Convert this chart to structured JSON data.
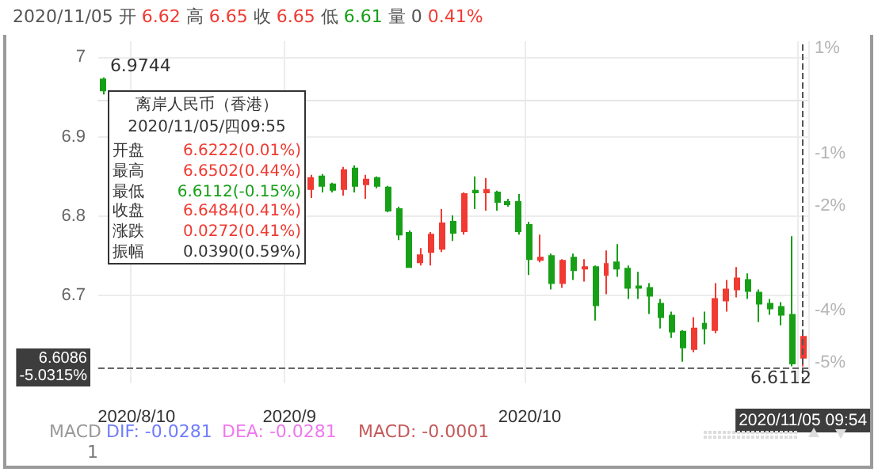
{
  "chart_data": {
    "type": "candlestick",
    "title": "2020/11/05 开 6.62 高 6.65 收 6.65 低 6.61 量 0 0.41%",
    "categories": [
      null,
      null,
      null,
      "2020/8/10",
      null,
      null,
      null,
      null,
      null,
      null,
      null,
      null,
      null,
      null,
      null,
      null,
      null,
      "2020/9",
      null,
      null,
      null,
      null,
      null,
      null,
      null,
      null,
      null,
      null,
      null,
      null,
      null,
      null,
      null,
      null,
      null,
      null,
      null,
      null,
      null,
      "2020/10",
      null,
      null,
      null,
      null,
      null,
      null,
      null,
      null,
      null,
      null,
      null,
      null,
      null,
      null,
      null,
      null,
      null,
      null,
      null,
      null,
      null,
      null,
      null,
      null,
      "2020/11/05 09:54"
    ],
    "ohlc": [
      [
        6.972,
        6.9744,
        6.953,
        6.958
      ],
      null,
      null,
      null,
      null,
      null,
      null,
      null,
      null,
      null,
      null,
      null,
      null,
      null,
      null,
      null,
      null,
      null,
      null,
      [
        6.834,
        6.852,
        6.823,
        6.848
      ],
      [
        6.85,
        6.853,
        6.83,
        6.838
      ],
      [
        6.84,
        6.842,
        6.83,
        6.833
      ],
      [
        6.834,
        6.862,
        6.826,
        6.858
      ],
      [
        6.86,
        6.864,
        6.83,
        6.838
      ],
      [
        6.84,
        6.852,
        6.822,
        6.846
      ],
      [
        6.848,
        6.85,
        6.835,
        6.838
      ],
      [
        6.836,
        6.838,
        6.805,
        6.807
      ],
      [
        6.809,
        6.812,
        6.77,
        6.777
      ],
      [
        6.779,
        6.782,
        6.735,
        6.736
      ],
      [
        6.742,
        6.76,
        6.738,
        6.751
      ],
      [
        6.755,
        6.78,
        6.738,
        6.777
      ],
      [
        6.759,
        6.809,
        6.755,
        6.791
      ],
      [
        6.793,
        6.801,
        6.769,
        6.779
      ],
      [
        6.781,
        6.83,
        6.777,
        6.828
      ],
      [
        6.832,
        6.85,
        6.809,
        6.83
      ],
      [
        6.83,
        6.848,
        6.807,
        6.833
      ],
      [
        6.83,
        6.832,
        6.807,
        6.818
      ],
      [
        6.818,
        6.822,
        6.812,
        6.815
      ],
      [
        6.818,
        6.828,
        6.777,
        6.781
      ],
      [
        6.789,
        6.793,
        6.726,
        6.746
      ],
      [
        6.745,
        6.777,
        6.742,
        6.748
      ],
      [
        6.75,
        6.753,
        6.708,
        6.716
      ],
      [
        6.716,
        6.746,
        6.71,
        6.744
      ],
      [
        6.748,
        6.753,
        6.72,
        6.732
      ],
      [
        6.734,
        6.746,
        6.718,
        6.736
      ],
      [
        6.736,
        6.738,
        6.669,
        6.688
      ],
      [
        6.726,
        6.757,
        6.702,
        6.74
      ],
      [
        6.742,
        6.765,
        6.724,
        6.734
      ],
      [
        6.734,
        6.738,
        6.696,
        6.71
      ],
      [
        6.712,
        6.73,
        6.696,
        6.71
      ],
      [
        6.71,
        6.716,
        6.677,
        6.7
      ],
      [
        6.69,
        6.696,
        6.659,
        6.673
      ],
      [
        6.675,
        6.68,
        6.647,
        6.655
      ],
      [
        6.655,
        6.657,
        6.617,
        6.635
      ],
      [
        6.633,
        6.673,
        6.629,
        6.659
      ],
      [
        6.665,
        6.68,
        6.639,
        6.659
      ],
      [
        6.657,
        6.716,
        6.653,
        6.696
      ],
      [
        6.694,
        6.72,
        6.68,
        6.708
      ],
      [
        6.708,
        6.736,
        6.698,
        6.722
      ],
      [
        6.72,
        6.728,
        6.696,
        6.706
      ],
      [
        6.704,
        6.708,
        6.667,
        6.69
      ],
      [
        6.69,
        6.696,
        6.676,
        6.684
      ],
      [
        6.686,
        6.692,
        6.663,
        6.676
      ],
      [
        6.676,
        6.775,
        6.6115,
        6.615
      ],
      [
        6.6222,
        6.6502,
        6.6112,
        6.6484
      ]
    ],
    "colors": [
      "#17a017",
      null,
      null,
      null,
      null,
      null,
      null,
      null,
      null,
      null,
      null,
      null,
      null,
      null,
      null,
      null,
      null,
      null,
      null,
      "#f03a32",
      "#17a017",
      "#17a017",
      "#f03a32",
      "#17a017",
      "#f03a32",
      "#17a017",
      "#17a017",
      "#17a017",
      "#17a017",
      "#f03a32",
      "#f03a32",
      "#f03a32",
      "#17a017",
      "#f03a32",
      "#17a017",
      "#f03a32",
      "#17a017",
      "#17a017",
      "#17a017",
      "#17a017",
      "#f03a32",
      "#17a017",
      "#f03a32",
      "#17a017",
      "#f03a32",
      "#17a017",
      "#f03a32",
      "#17a017",
      "#17a017",
      "#17a017",
      "#17a017",
      "#17a017",
      "#17a017",
      "#17a017",
      "#f03a32",
      "#17a017",
      "#f03a32",
      "#f03a32",
      "#f03a32",
      "#17a017",
      "#17a017",
      "#17a017",
      "#17a017",
      "#17a017",
      "#f03a32"
    ],
    "ylim": [
      6.59,
      7.02
    ],
    "yticks": [
      6.7,
      6.8,
      6.9,
      7
    ],
    "y2lim": [
      -5.39,
      1.14
    ],
    "y2ticks": [
      {
        "value": -5,
        "label": "-5%"
      },
      {
        "value": -4,
        "label": "-4%"
      },
      {
        "value": -2,
        "label": "-2%"
      },
      {
        "value": -1,
        "label": "-1%"
      },
      {
        "value": 1,
        "label": "1%"
      }
    ],
    "grid": true,
    "ref_lines": [
      {
        "axis": "y",
        "value": 6.6086,
        "label": "6.6086\n-5.0315%",
        "line_style": "dashed",
        "color": "#666666"
      },
      {
        "axis": "x",
        "value": "2020/11/05 09:54",
        "line_style": "dashed",
        "color": "#555555"
      }
    ],
    "annotations": [
      "离岸人民币（香港）",
      "2020/11/05/四09:55",
      "开盘",
      "6.6222(0.01%)",
      "最高",
      "6.6502(0.44%)",
      "最低",
      "6.6112(-0.15%)",
      "收盘",
      "6.6484(0.41%)",
      "涨跌",
      "0.0272(0.41%)",
      "振幅",
      "0.0390(0.59%)",
      "6.9744",
      "6.6112",
      "MACD",
      "DIF: -0.0281",
      "DEA: -0.0281",
      "MACD: -0.0001",
      "1"
    ]
  }
}
